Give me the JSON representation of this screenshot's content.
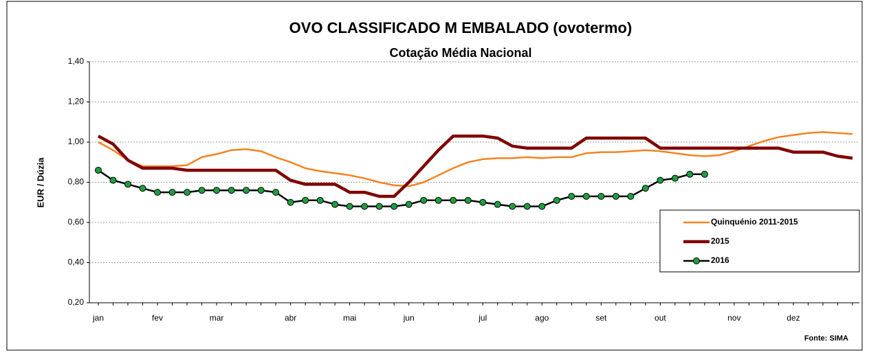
{
  "chart_data": {
    "type": "line",
    "title": "OVO CLASSIFICADO M EMBALADO (ovotermo)",
    "subtitle": "Cotação Média Nacional",
    "y_label": "EUR / Dúzia",
    "source": "Fonte: SIMA",
    "categories": [
      "jan",
      null,
      null,
      null,
      "fev",
      null,
      null,
      null,
      "mar",
      null,
      null,
      null,
      null,
      "abr",
      null,
      null,
      null,
      "mai",
      null,
      null,
      null,
      "jun",
      null,
      null,
      null,
      null,
      "jul",
      null,
      null,
      null,
      "ago",
      null,
      null,
      null,
      "set",
      null,
      null,
      null,
      "out",
      null,
      null,
      null,
      null,
      "nov",
      null,
      null,
      null,
      "dez",
      null,
      null,
      null,
      null
    ],
    "ylim": [
      0.2,
      1.4
    ],
    "yticks": [
      {
        "value": 0.2,
        "label": "0,20"
      },
      {
        "value": 0.4,
        "label": "0,40"
      },
      {
        "value": 0.6,
        "label": "0,60"
      },
      {
        "value": 0.8,
        "label": "0,80"
      },
      {
        "value": 1.0,
        "label": "1,00"
      },
      {
        "value": 1.2,
        "label": "1,20"
      },
      {
        "value": 1.4,
        "label": "1,40"
      }
    ],
    "grid": true,
    "legend": "lower right",
    "series": [
      {
        "name": "Quinquénio 2011-2015",
        "color": "#f58220",
        "width": 2.5,
        "markers": false,
        "values": [
          1.0,
          0.96,
          0.91,
          0.88,
          0.88,
          0.88,
          0.885,
          0.925,
          0.94,
          0.96,
          0.965,
          0.955,
          0.925,
          0.9,
          0.87,
          0.855,
          0.845,
          0.835,
          0.82,
          0.8,
          0.785,
          0.78,
          0.8,
          0.835,
          0.87,
          0.9,
          0.915,
          0.92,
          0.92,
          0.925,
          0.92,
          0.925,
          0.925,
          0.945,
          0.95,
          0.95,
          0.955,
          0.96,
          0.955,
          0.945,
          0.935,
          0.93,
          0.935,
          0.955,
          0.98,
          1.005,
          1.025,
          1.035,
          1.045,
          1.05,
          1.045,
          1.04
        ]
      },
      {
        "name": "2015",
        "color": "#7f0000",
        "width": 4.5,
        "markers": false,
        "values": [
          1.03,
          0.99,
          0.91,
          0.87,
          0.87,
          0.87,
          0.86,
          0.86,
          0.86,
          0.86,
          0.86,
          0.86,
          0.86,
          0.81,
          0.79,
          0.79,
          0.79,
          0.75,
          0.75,
          0.73,
          0.73,
          0.8,
          0.88,
          0.96,
          1.03,
          1.03,
          1.03,
          1.02,
          0.98,
          0.97,
          0.97,
          0.97,
          0.97,
          1.02,
          1.02,
          1.02,
          1.02,
          1.02,
          0.97,
          0.97,
          0.97,
          0.97,
          0.97,
          0.97,
          0.97,
          0.97,
          0.97,
          0.95,
          0.95,
          0.95,
          0.93,
          0.92
        ]
      },
      {
        "name": "2016",
        "color": "#000000",
        "marker_color": "#1e9e3e",
        "width": 2.5,
        "markers": true,
        "values": [
          0.86,
          0.81,
          0.79,
          0.77,
          0.75,
          0.75,
          0.75,
          0.76,
          0.76,
          0.76,
          0.76,
          0.76,
          0.75,
          0.7,
          0.71,
          0.71,
          0.69,
          0.68,
          0.68,
          0.68,
          0.68,
          0.69,
          0.71,
          0.71,
          0.71,
          0.71,
          0.7,
          0.69,
          0.68,
          0.68,
          0.68,
          0.71,
          0.73,
          0.73,
          0.73,
          0.73,
          0.73,
          0.77,
          0.81,
          0.82,
          0.84,
          0.84,
          null,
          null,
          null,
          null,
          null,
          null,
          null,
          null,
          null,
          null
        ]
      }
    ]
  }
}
